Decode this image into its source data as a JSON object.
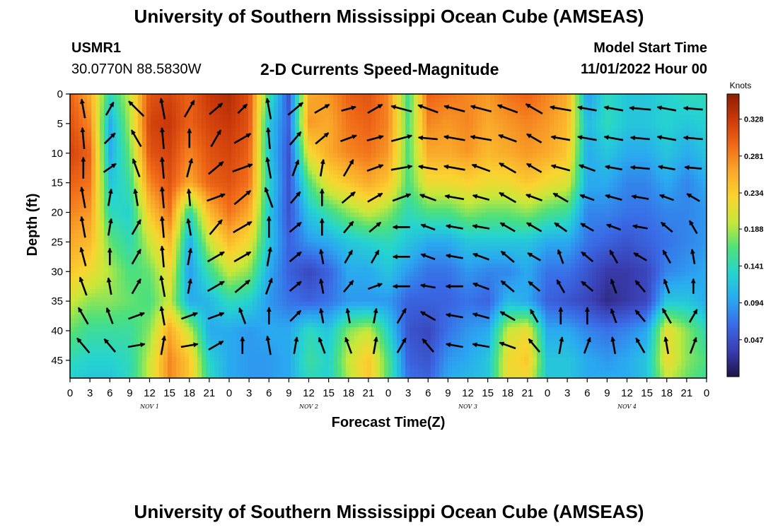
{
  "header": {
    "title": "University of Southern Mississippi Ocean Cube (AMSEAS)",
    "station_id": "USMR1",
    "station_coords": "30.0770N  88.5830W",
    "plot_title": "2-D Currents Speed-Magnitude",
    "model_label": "Model Start Time",
    "model_time": "11/01/2022 Hour 00"
  },
  "footer": {
    "title": "University of Southern Mississippi Ocean Cube (AMSEAS)"
  },
  "chart_data": {
    "type": "heatmap",
    "title": "2-D Currents Speed-Magnitude",
    "xlabel": "Forecast Time(Z)",
    "ylabel": "Depth (ft)",
    "x_ticks": [
      "0",
      "3",
      "6",
      "9",
      "12",
      "15",
      "18",
      "21",
      "0",
      "3",
      "6",
      "9",
      "12",
      "15",
      "18",
      "21",
      "0",
      "3",
      "6",
      "9",
      "12",
      "15",
      "18",
      "21",
      "0",
      "3",
      "6",
      "9",
      "12",
      "15",
      "18",
      "21",
      "0"
    ],
    "x_range_hours": [
      0,
      96
    ],
    "day_labels": [
      "NOV 1",
      "NOV 2",
      "NOV 3",
      "NOV 4"
    ],
    "y_ticks": [
      0,
      5,
      10,
      15,
      20,
      25,
      30,
      35,
      40,
      45
    ],
    "y_range_ft": [
      0,
      48
    ],
    "colorbar": {
      "unit": "Knots",
      "ticks": [
        "0.328",
        "0.281",
        "0.234",
        "0.188",
        "0.141",
        "0.094",
        "0.047"
      ],
      "range": [
        0,
        0.36
      ]
    },
    "speed_grid": {
      "times_h": [
        0,
        3,
        6,
        9,
        12,
        15,
        18,
        21,
        24,
        27,
        30,
        33,
        36,
        39,
        42,
        45,
        48,
        51,
        54,
        57,
        60,
        63,
        66,
        69,
        72,
        75,
        78,
        81,
        84,
        87,
        90,
        93,
        96
      ],
      "depths_ft": [
        0,
        5,
        10,
        15,
        20,
        25,
        30,
        35,
        40,
        45,
        48
      ],
      "values_knots": [
        [
          0.3,
          0.26,
          0.14,
          0.2,
          0.31,
          0.32,
          0.3,
          0.33,
          0.34,
          0.31,
          0.15,
          0.05,
          0.26,
          0.27,
          0.3,
          0.31,
          0.28,
          0.15,
          0.3,
          0.29,
          0.28,
          0.27,
          0.29,
          0.3,
          0.28,
          0.26,
          0.09,
          0.14,
          0.12,
          0.12,
          0.13,
          0.14,
          0.14
        ],
        [
          0.31,
          0.28,
          0.1,
          0.19,
          0.32,
          0.33,
          0.3,
          0.32,
          0.33,
          0.31,
          0.12,
          0.06,
          0.27,
          0.26,
          0.29,
          0.3,
          0.28,
          0.16,
          0.28,
          0.27,
          0.28,
          0.26,
          0.27,
          0.28,
          0.27,
          0.25,
          0.11,
          0.14,
          0.12,
          0.12,
          0.13,
          0.12,
          0.13
        ],
        [
          0.32,
          0.3,
          0.1,
          0.17,
          0.31,
          0.32,
          0.28,
          0.31,
          0.32,
          0.3,
          0.12,
          0.05,
          0.22,
          0.26,
          0.28,
          0.29,
          0.27,
          0.16,
          0.26,
          0.26,
          0.27,
          0.25,
          0.26,
          0.27,
          0.26,
          0.24,
          0.1,
          0.12,
          0.1,
          0.1,
          0.12,
          0.1,
          0.12
        ],
        [
          0.3,
          0.29,
          0.12,
          0.15,
          0.28,
          0.31,
          0.26,
          0.3,
          0.31,
          0.29,
          0.13,
          0.05,
          0.16,
          0.22,
          0.24,
          0.26,
          0.24,
          0.16,
          0.22,
          0.22,
          0.23,
          0.22,
          0.22,
          0.24,
          0.22,
          0.21,
          0.1,
          0.1,
          0.08,
          0.08,
          0.1,
          0.08,
          0.1
        ],
        [
          0.28,
          0.27,
          0.14,
          0.13,
          0.24,
          0.29,
          0.14,
          0.25,
          0.29,
          0.26,
          0.12,
          0.05,
          0.12,
          0.15,
          0.18,
          0.2,
          0.18,
          0.14,
          0.16,
          0.16,
          0.18,
          0.17,
          0.17,
          0.18,
          0.16,
          0.15,
          0.08,
          0.08,
          0.07,
          0.07,
          0.08,
          0.08,
          0.09
        ],
        [
          0.26,
          0.25,
          0.17,
          0.14,
          0.2,
          0.25,
          0.1,
          0.2,
          0.25,
          0.22,
          0.12,
          0.06,
          0.09,
          0.1,
          0.12,
          0.13,
          0.14,
          0.12,
          0.1,
          0.1,
          0.12,
          0.12,
          0.12,
          0.12,
          0.1,
          0.1,
          0.07,
          0.06,
          0.05,
          0.06,
          0.07,
          0.08,
          0.09
        ],
        [
          0.24,
          0.22,
          0.19,
          0.16,
          0.17,
          0.22,
          0.09,
          0.15,
          0.2,
          0.18,
          0.1,
          0.06,
          0.04,
          0.06,
          0.1,
          0.1,
          0.12,
          0.09,
          0.07,
          0.07,
          0.09,
          0.08,
          0.08,
          0.1,
          0.07,
          0.07,
          0.05,
          0.03,
          0.03,
          0.04,
          0.08,
          0.09,
          0.1
        ],
        [
          0.2,
          0.18,
          0.18,
          0.17,
          0.16,
          0.2,
          0.1,
          0.11,
          0.14,
          0.13,
          0.09,
          0.07,
          0.06,
          0.07,
          0.09,
          0.09,
          0.09,
          0.06,
          0.06,
          0.06,
          0.07,
          0.06,
          0.11,
          0.1,
          0.06,
          0.05,
          0.04,
          0.02,
          0.03,
          0.04,
          0.12,
          0.12,
          0.1
        ],
        [
          0.17,
          0.15,
          0.15,
          0.15,
          0.18,
          0.26,
          0.2,
          0.1,
          0.1,
          0.09,
          0.1,
          0.1,
          0.14,
          0.12,
          0.18,
          0.2,
          0.13,
          0.05,
          0.04,
          0.07,
          0.09,
          0.1,
          0.2,
          0.22,
          0.1,
          0.1,
          0.08,
          0.07,
          0.08,
          0.1,
          0.22,
          0.18,
          0.14
        ],
        [
          0.14,
          0.13,
          0.13,
          0.14,
          0.2,
          0.28,
          0.24,
          0.13,
          0.1,
          0.09,
          0.09,
          0.1,
          0.15,
          0.13,
          0.2,
          0.24,
          0.16,
          0.06,
          0.05,
          0.09,
          0.1,
          0.12,
          0.22,
          0.24,
          0.12,
          0.12,
          0.1,
          0.09,
          0.1,
          0.12,
          0.22,
          0.18,
          0.16
        ],
        [
          0.13,
          0.12,
          0.12,
          0.14,
          0.2,
          0.28,
          0.24,
          0.14,
          0.1,
          0.09,
          0.09,
          0.1,
          0.14,
          0.13,
          0.19,
          0.24,
          0.16,
          0.07,
          0.06,
          0.1,
          0.11,
          0.12,
          0.22,
          0.22,
          0.12,
          0.12,
          0.1,
          0.1,
          0.1,
          0.12,
          0.2,
          0.17,
          0.15
        ]
      ]
    },
    "vectors": {
      "times_h": [
        2,
        6,
        10,
        14,
        18,
        22,
        26,
        30,
        34,
        38,
        42,
        46,
        50,
        54,
        58,
        62,
        66,
        70,
        74,
        78,
        82,
        86,
        90,
        94
      ],
      "depths_ft": [
        2.5,
        7.5,
        12.5,
        17.5,
        22.5,
        27.5,
        32.5,
        37.5,
        42.5
      ],
      "angles_deg": [
        [
          100,
          60,
          135,
          100,
          60,
          40,
          45,
          100,
          40,
          30,
          15,
          30,
          165,
          160,
          165,
          165,
          160,
          150,
          170,
          170,
          170,
          175,
          170,
          175
        ],
        [
          95,
          45,
          120,
          95,
          90,
          60,
          30,
          95,
          50,
          40,
          20,
          15,
          15,
          175,
          170,
          170,
          160,
          150,
          170,
          170,
          170,
          175,
          170,
          175
        ],
        [
          90,
          35,
          110,
          95,
          75,
          40,
          20,
          100,
          70,
          80,
          60,
          20,
          10,
          170,
          170,
          160,
          150,
          150,
          165,
          160,
          170,
          175,
          170,
          175
        ],
        [
          100,
          80,
          100,
          95,
          95,
          20,
          40,
          110,
          50,
          90,
          40,
          30,
          20,
          160,
          170,
          165,
          150,
          160,
          150,
          160,
          165,
          170,
          160,
          150
        ],
        [
          100,
          80,
          60,
          95,
          100,
          50,
          30,
          90,
          40,
          90,
          50,
          40,
          180,
          160,
          170,
          170,
          150,
          150,
          145,
          150,
          160,
          170,
          140,
          120
        ],
        [
          105,
          90,
          60,
          95,
          80,
          30,
          30,
          80,
          40,
          100,
          60,
          60,
          180,
          160,
          170,
          160,
          140,
          150,
          110,
          140,
          120,
          150,
          120,
          100
        ],
        [
          110,
          100,
          60,
          100,
          80,
          30,
          40,
          70,
          40,
          100,
          50,
          20,
          180,
          170,
          180,
          160,
          140,
          140,
          120,
          140,
          110,
          130,
          110,
          90
        ],
        [
          120,
          110,
          20,
          100,
          20,
          20,
          110,
          90,
          45,
          100,
          100,
          80,
          60,
          150,
          170,
          165,
          150,
          120,
          90,
          90,
          110,
          130,
          120,
          60
        ],
        [
          130,
          130,
          10,
          80,
          10,
          30,
          90,
          100,
          80,
          110,
          110,
          80,
          60,
          130,
          170,
          170,
          160,
          130,
          80,
          70,
          100,
          120,
          100,
          70
        ]
      ],
      "lengths": [
        [
          0.9,
          0.7,
          1.0,
          1.0,
          0.9,
          0.8,
          0.6,
          1.0,
          0.9,
          0.8,
          0.7,
          0.8,
          1.0,
          1.0,
          1.0,
          1.0,
          1.0,
          0.9,
          1.0,
          0.9,
          0.9,
          1.0,
          0.9,
          0.9
        ],
        [
          1.0,
          0.7,
          0.9,
          1.0,
          0.9,
          0.9,
          0.9,
          1.0,
          0.8,
          0.8,
          0.8,
          0.8,
          1.0,
          0.9,
          1.0,
          1.0,
          0.9,
          0.8,
          0.9,
          0.9,
          0.9,
          0.9,
          0.9,
          0.9
        ],
        [
          1.0,
          0.7,
          0.9,
          1.0,
          0.9,
          0.9,
          1.0,
          1.0,
          0.8,
          0.8,
          0.9,
          0.8,
          1.0,
          0.9,
          1.0,
          0.9,
          0.9,
          0.8,
          0.9,
          0.8,
          0.8,
          0.9,
          0.8,
          0.8
        ],
        [
          1.0,
          0.8,
          0.8,
          1.0,
          0.8,
          0.9,
          1.0,
          1.0,
          0.7,
          0.8,
          0.8,
          0.8,
          0.9,
          0.8,
          0.9,
          0.8,
          0.9,
          0.8,
          0.8,
          0.7,
          0.8,
          0.8,
          0.7,
          0.7
        ],
        [
          1.0,
          0.8,
          0.8,
          1.0,
          0.8,
          0.9,
          1.0,
          1.0,
          0.7,
          0.8,
          0.7,
          0.7,
          0.8,
          0.7,
          0.8,
          0.8,
          0.8,
          0.8,
          0.7,
          0.7,
          0.7,
          0.7,
          0.7,
          0.7
        ],
        [
          0.9,
          0.8,
          0.8,
          1.0,
          0.8,
          0.9,
          0.9,
          0.9,
          0.7,
          0.7,
          0.7,
          0.7,
          0.8,
          0.7,
          0.8,
          0.8,
          0.8,
          0.7,
          0.7,
          0.7,
          0.7,
          0.7,
          0.7,
          0.7
        ],
        [
          0.9,
          0.8,
          0.8,
          1.0,
          0.7,
          0.9,
          0.9,
          0.8,
          0.7,
          0.7,
          0.7,
          0.7,
          0.8,
          0.7,
          0.8,
          0.8,
          0.8,
          0.7,
          0.7,
          0.7,
          0.7,
          0.7,
          0.7,
          0.7
        ],
        [
          0.9,
          0.8,
          0.8,
          0.9,
          0.8,
          0.8,
          0.8,
          0.8,
          0.7,
          0.7,
          0.7,
          0.7,
          0.8,
          0.8,
          0.8,
          0.8,
          0.8,
          0.7,
          0.8,
          0.8,
          0.7,
          0.7,
          0.8,
          0.7
        ],
        [
          0.9,
          0.8,
          0.8,
          0.9,
          0.8,
          0.8,
          0.8,
          0.9,
          0.8,
          0.8,
          0.8,
          0.8,
          0.8,
          0.8,
          0.8,
          0.8,
          0.8,
          0.8,
          0.8,
          0.8,
          0.8,
          0.8,
          0.8,
          0.8
        ]
      ]
    }
  },
  "colors": {
    "colormap": [
      "#1e1447",
      "#3a3db0",
      "#3a6ae6",
      "#2aa8f0",
      "#25d4cf",
      "#4ee07a",
      "#c6e83a",
      "#f9d430",
      "#f9a82a",
      "#f06a18",
      "#cc3a0a",
      "#8a1e04"
    ],
    "arrow": "#000000",
    "text": "#000000"
  }
}
